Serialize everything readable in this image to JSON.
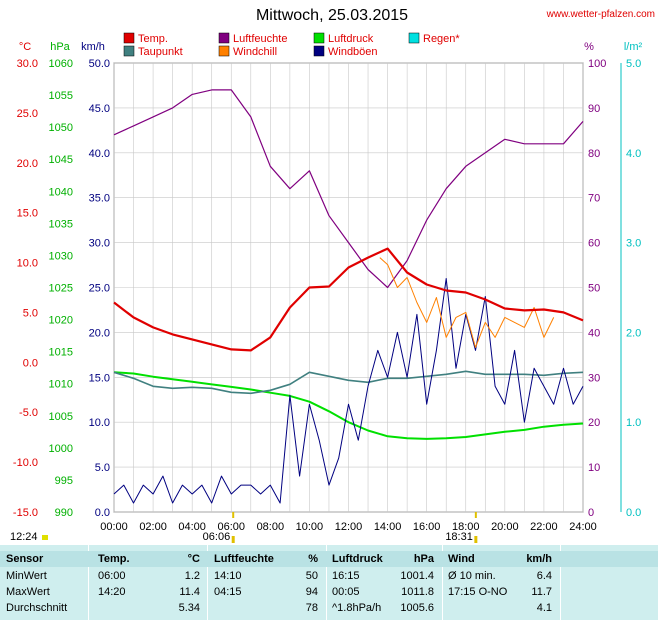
{
  "site": "www.wetter-pfalzen.com",
  "chart_data": {
    "type": "line",
    "title": "Mittwoch, 25.03.2015",
    "x_ticks": [
      "00:00",
      "02:00",
      "04:00",
      "06:00",
      "08:00",
      "10:00",
      "12:00",
      "14:00",
      "16:00",
      "18:00",
      "20:00",
      "22:00",
      "24:00"
    ],
    "axes": {
      "temp": {
        "unit": "°C",
        "min": -15,
        "max": 30,
        "ticks": [
          "30.0",
          "25.0",
          "20.0",
          "15.0",
          "10.0",
          "5.0",
          "0.0",
          "-5.0",
          "-10.0",
          "-15.0"
        ]
      },
      "pressure": {
        "unit": "hPa",
        "min": 990,
        "max": 1060,
        "ticks": [
          "1060",
          "1055",
          "1050",
          "1045",
          "1040",
          "1035",
          "1030",
          "1025",
          "1020",
          "1015",
          "1010",
          "1005",
          "1000",
          "995",
          "990"
        ]
      },
      "wind": {
        "unit": "km/h",
        "min": 0,
        "max": 50,
        "ticks": [
          "50.0",
          "45.0",
          "40.0",
          "35.0",
          "30.0",
          "25.0",
          "20.0",
          "15.0",
          "10.0",
          "5.0",
          "0.0"
        ]
      },
      "humidity": {
        "unit": "%",
        "min": 0,
        "max": 100,
        "ticks": [
          "100",
          "90",
          "80",
          "70",
          "60",
          "50",
          "40",
          "30",
          "20",
          "10",
          "0"
        ]
      },
      "rain": {
        "unit": "l/m²",
        "min": 0,
        "max": 5,
        "ticks": [
          "5.0",
          "4.0",
          "3.0",
          "2.0",
          "1.0",
          "0.0"
        ]
      }
    },
    "legend": [
      {
        "name": "Temp.",
        "color": "#e00000"
      },
      {
        "name": "Luftfeuchte",
        "color": "#800080"
      },
      {
        "name": "Luftdruck",
        "color": "#00e000"
      },
      {
        "name": "Regen*",
        "color": "#00e0e0"
      },
      {
        "name": "Taupunkt",
        "color": "#408080"
      },
      {
        "name": "Windchill",
        "color": "#ff8000"
      },
      {
        "name": "Windböen",
        "color": "#000080"
      }
    ],
    "sun": {
      "sunrise_label": "06:06",
      "sunset_label": "18:31",
      "daylength_label": "12:24"
    },
    "series": [
      {
        "name": "Temp.",
        "color": "#e00000",
        "axis": "temp",
        "x": [
          0,
          1,
          2,
          3,
          4,
          5,
          6,
          7,
          8,
          9,
          10,
          11,
          12,
          13,
          14,
          15,
          16,
          17,
          18,
          19,
          20,
          21,
          22,
          23,
          24
        ],
        "y": [
          6.0,
          4.5,
          3.5,
          2.8,
          2.3,
          1.8,
          1.3,
          1.2,
          2.5,
          5.5,
          7.5,
          7.6,
          9.5,
          10.5,
          11.4,
          9.0,
          7.8,
          7.2,
          7.0,
          6.3,
          5.4,
          5.2,
          5.3,
          5.0,
          4.2
        ]
      },
      {
        "name": "Taupunkt",
        "color": "#408080",
        "axis": "temp",
        "x": [
          0,
          1,
          2,
          3,
          4,
          5,
          6,
          7,
          8,
          9,
          10,
          11,
          12,
          13,
          14,
          15,
          16,
          17,
          18,
          19,
          20,
          21,
          22,
          23,
          24
        ],
        "y": [
          -1.0,
          -1.6,
          -2.4,
          -2.6,
          -2.5,
          -2.6,
          -3.0,
          -3.1,
          -2.8,
          -2.2,
          -1.0,
          -1.4,
          -1.8,
          -2.0,
          -1.6,
          -1.6,
          -1.4,
          -1.2,
          -0.9,
          -1.2,
          -1.2,
          -1.2,
          -1.3,
          -1.1,
          -1.0
        ]
      },
      {
        "name": "Luftfeuchte",
        "color": "#800080",
        "axis": "humidity",
        "x": [
          0,
          1,
          2,
          3,
          4,
          5,
          6,
          7,
          8,
          9,
          10,
          11,
          12,
          13,
          14,
          15,
          16,
          17,
          18,
          19,
          20,
          21,
          22,
          23,
          24
        ],
        "y": [
          84,
          86,
          88,
          90,
          93,
          94,
          94,
          88,
          77,
          72,
          76,
          66,
          60,
          54,
          50,
          56,
          65,
          72,
          77,
          80,
          83,
          82,
          82,
          82,
          87
        ]
      },
      {
        "name": "Luftdruck",
        "color": "#00e000",
        "axis": "pressure",
        "x": [
          0,
          1,
          2,
          3,
          4,
          5,
          6,
          7,
          8,
          9,
          10,
          11,
          12,
          13,
          14,
          15,
          16,
          17,
          18,
          19,
          20,
          21,
          22,
          23,
          24
        ],
        "y": [
          1011.8,
          1011.6,
          1011.1,
          1010.7,
          1010.3,
          1009.9,
          1009.5,
          1009.1,
          1008.6,
          1008.1,
          1007.2,
          1005.7,
          1004.0,
          1002.7,
          1001.8,
          1001.5,
          1001.4,
          1001.5,
          1001.7,
          1002.1,
          1002.5,
          1002.8,
          1003.3,
          1003.6,
          1003.8
        ]
      },
      {
        "name": "Windchill",
        "color": "#ff8000",
        "axis": "temp",
        "x": [
          13.6,
          14,
          14.5,
          15,
          15.5,
          16,
          16.5,
          17,
          17.5,
          18,
          18.5,
          19,
          19.5,
          20,
          20.5,
          21,
          21.5,
          22,
          22.5
        ],
        "y": [
          10.5,
          9.8,
          7.5,
          8.5,
          6.0,
          4.0,
          6.5,
          2.5,
          4.5,
          5.0,
          1.5,
          4.0,
          2.5,
          4.5,
          4.0,
          3.5,
          5.5,
          2.5,
          4.5
        ]
      },
      {
        "name": "Windböen",
        "color": "#000080",
        "axis": "wind",
        "x": [
          0,
          0.5,
          1,
          1.5,
          2,
          2.5,
          3,
          3.5,
          4,
          4.5,
          5,
          5.5,
          6,
          6.5,
          7,
          7.5,
          8,
          8.5,
          9,
          9.5,
          10,
          10.5,
          11,
          11.5,
          12,
          12.5,
          13,
          13.5,
          14,
          14.5,
          15,
          15.5,
          16,
          16.5,
          17,
          17.5,
          18,
          18.5,
          19,
          19.5,
          20,
          20.5,
          21,
          21.5,
          22,
          22.5,
          23,
          23.5,
          24
        ],
        "y": [
          2,
          3,
          1,
          3,
          2,
          4,
          1,
          3,
          2,
          3,
          1,
          4,
          2,
          3,
          3,
          2,
          3,
          1,
          13,
          4,
          12,
          8,
          3,
          6,
          12,
          8,
          14,
          18,
          15,
          20,
          15,
          22,
          12,
          18,
          26,
          16,
          22,
          18,
          24,
          14,
          12,
          18,
          10,
          16,
          14,
          12,
          16,
          12,
          14
        ]
      }
    ]
  },
  "table": {
    "headers": [
      "Sensor",
      "Temp.",
      "°C",
      "Luftfeuchte",
      "%",
      "Luftdruck",
      "hPa",
      "Wind",
      "km/h"
    ],
    "rows": [
      [
        "MinWert",
        "06:00",
        "1.2",
        "14:10",
        "50",
        "16:15",
        "1001.4",
        "Ø 10 min.",
        "6.4"
      ],
      [
        "MaxWert",
        "14:20",
        "11.4",
        "04:15",
        "94",
        "00:05",
        "1011.8",
        "17:15   O-NO",
        "11.7"
      ],
      [
        "Durchschnitt",
        "",
        "5.34",
        "",
        "78",
        "^1.8hPa/h",
        "1005.6",
        "",
        "4.1"
      ]
    ]
  }
}
